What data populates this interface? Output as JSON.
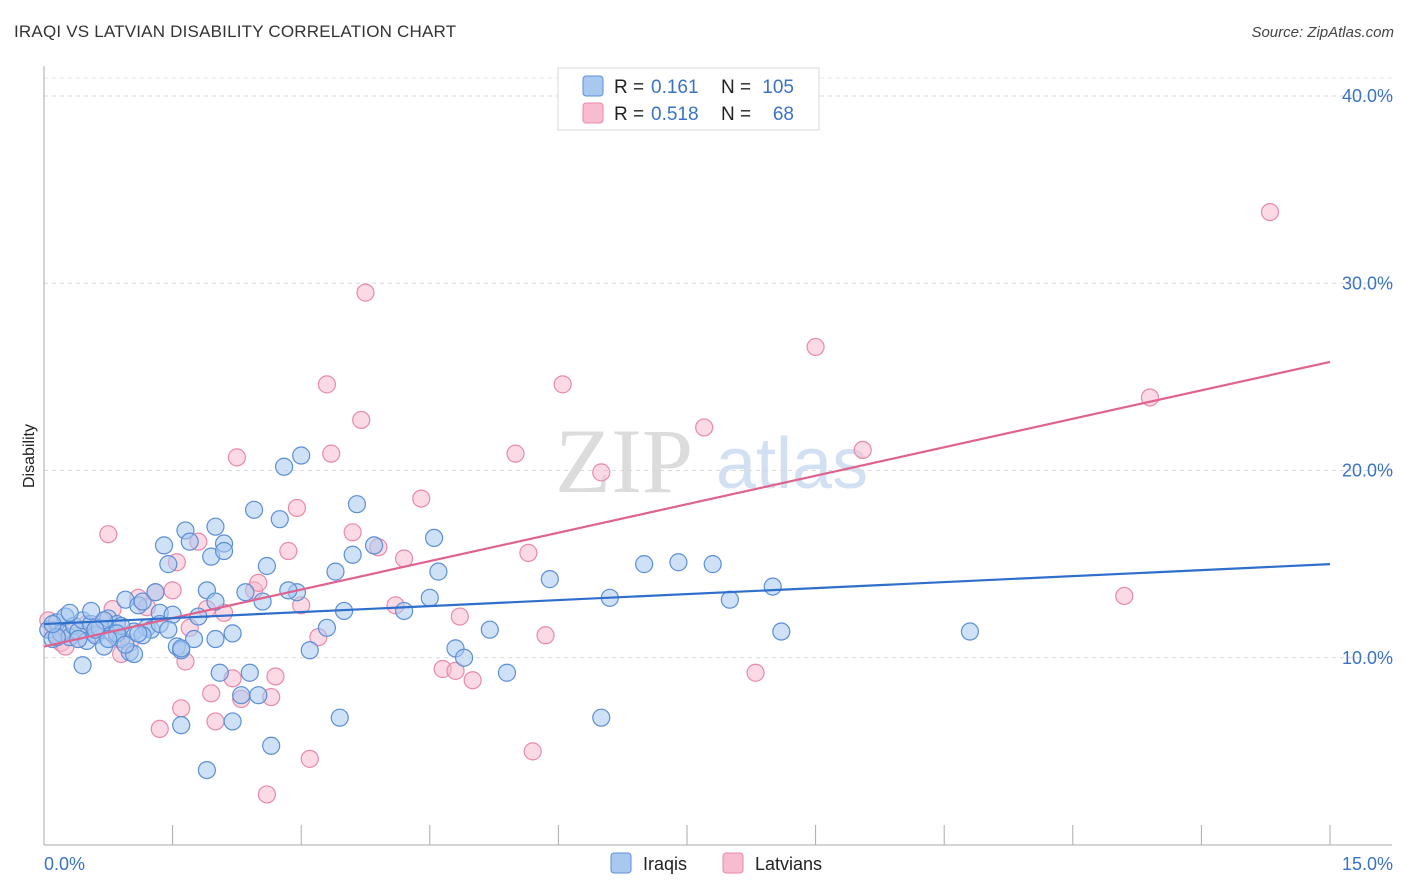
{
  "header": {
    "title": "IRAQI VS LATVIAN DISABILITY CORRELATION CHART",
    "source": "Source: ZipAtlas.com"
  },
  "watermark": {
    "zip": "ZIP",
    "atlas": "atlas"
  },
  "chart_data": {
    "type": "scatter",
    "title": "IRAQI VS LATVIAN DISABILITY CORRELATION CHART",
    "xlabel": "",
    "ylabel": "Disability",
    "xlim": [
      0,
      15
    ],
    "ylim": [
      0,
      40
    ],
    "x_ticks": [
      0,
      1.5,
      3,
      4.5,
      6,
      7.5,
      9,
      10.5,
      12,
      13.5,
      15
    ],
    "x_tick_labels": {
      "left": "0.0%",
      "right": "15.0%"
    },
    "y_ticks": [
      10,
      20,
      30,
      40
    ],
    "y_tick_labels": [
      "10.0%",
      "20.0%",
      "30.0%",
      "40.0%"
    ],
    "grid": "horizontal dashed",
    "legend_position": "top-center",
    "colors": {
      "iraqis_fill": "#a8c8f0",
      "iraqis_stroke": "#5b8fd6",
      "iraqis_line": "#2f6fcc",
      "latvians_fill": "#f8bcd0",
      "latvians_stroke": "#e88aa8",
      "latvians_line": "#e0628e",
      "tick_text": "#3a73c6"
    },
    "legend_stats": [
      {
        "r_label": "R =",
        "r_value": "0.161",
        "n_label": "N =",
        "n_value": "105"
      },
      {
        "r_label": "R =",
        "r_value": "0.518",
        "n_label": "N =",
        "n_value": "68"
      }
    ],
    "series": [
      {
        "name": "Iraqis",
        "trend": {
          "x": [
            0,
            15
          ],
          "y": [
            11.8,
            15.0
          ]
        },
        "points": [
          [
            0.05,
            11.5
          ],
          [
            0.1,
            11.0
          ],
          [
            0.15,
            11.9
          ],
          [
            0.2,
            11.3
          ],
          [
            0.25,
            12.2
          ],
          [
            0.3,
            11.1
          ],
          [
            0.35,
            11.7
          ],
          [
            0.4,
            11.4
          ],
          [
            0.45,
            12.0
          ],
          [
            0.5,
            10.9
          ],
          [
            0.55,
            11.8
          ],
          [
            0.6,
            11.2
          ],
          [
            0.65,
            11.6
          ],
          [
            0.7,
            10.6
          ],
          [
            0.75,
            12.1
          ],
          [
            0.8,
            11.3
          ],
          [
            0.85,
            11.8
          ],
          [
            0.9,
            11.0
          ],
          [
            0.95,
            13.1
          ],
          [
            1.0,
            10.3
          ],
          [
            1.05,
            11.4
          ],
          [
            1.1,
            12.8
          ],
          [
            1.15,
            13.0
          ],
          [
            1.2,
            11.6
          ],
          [
            1.3,
            13.5
          ],
          [
            1.35,
            12.4
          ],
          [
            1.4,
            16.0
          ],
          [
            1.45,
            15.0
          ],
          [
            1.5,
            12.3
          ],
          [
            1.55,
            10.6
          ],
          [
            1.6,
            10.4
          ],
          [
            1.65,
            16.8
          ],
          [
            1.7,
            16.2
          ],
          [
            1.75,
            11.0
          ],
          [
            1.8,
            12.2
          ],
          [
            1.9,
            13.6
          ],
          [
            1.95,
            15.4
          ],
          [
            2.0,
            17.0
          ],
          [
            2.05,
            9.2
          ],
          [
            2.1,
            16.1
          ],
          [
            2.2,
            11.3
          ],
          [
            2.3,
            8.0
          ],
          [
            2.35,
            13.5
          ],
          [
            2.4,
            9.2
          ],
          [
            2.45,
            17.9
          ],
          [
            2.5,
            8.0
          ],
          [
            2.55,
            13.0
          ],
          [
            2.6,
            14.9
          ],
          [
            2.65,
            5.3
          ],
          [
            2.75,
            17.4
          ],
          [
            2.8,
            20.2
          ],
          [
            2.95,
            13.5
          ],
          [
            3.0,
            20.8
          ],
          [
            3.1,
            10.4
          ],
          [
            3.3,
            11.6
          ],
          [
            3.4,
            14.6
          ],
          [
            3.45,
            6.8
          ],
          [
            3.5,
            12.5
          ],
          [
            3.6,
            15.5
          ],
          [
            3.65,
            18.2
          ],
          [
            3.85,
            16.0
          ],
          [
            4.2,
            12.5
          ],
          [
            4.5,
            13.2
          ],
          [
            4.55,
            16.4
          ],
          [
            4.6,
            14.6
          ],
          [
            4.8,
            10.5
          ],
          [
            4.9,
            10.0
          ],
          [
            5.2,
            11.5
          ],
          [
            5.4,
            9.2
          ],
          [
            5.9,
            14.2
          ],
          [
            6.5,
            6.8
          ],
          [
            6.6,
            13.2
          ],
          [
            7.0,
            15.0
          ],
          [
            7.4,
            15.1
          ],
          [
            7.8,
            15.0
          ],
          [
            8.0,
            13.1
          ],
          [
            8.5,
            13.8
          ],
          [
            8.6,
            11.4
          ],
          [
            10.8,
            11.4
          ],
          [
            1.9,
            4.0
          ],
          [
            1.6,
            6.4
          ],
          [
            2.2,
            6.6
          ],
          [
            0.45,
            9.6
          ],
          [
            1.05,
            10.2
          ],
          [
            1.25,
            11.5
          ],
          [
            0.7,
            12.0
          ],
          [
            0.9,
            11.7
          ],
          [
            1.15,
            11.2
          ],
          [
            0.3,
            12.4
          ],
          [
            0.6,
            11.5
          ],
          [
            0.85,
            11.3
          ],
          [
            0.15,
            11.1
          ],
          [
            0.1,
            11.8
          ],
          [
            0.4,
            11.0
          ],
          [
            1.6,
            10.5
          ],
          [
            1.35,
            11.8
          ],
          [
            2.0,
            11.0
          ],
          [
            2.1,
            15.7
          ],
          [
            2.85,
            13.6
          ],
          [
            1.45,
            11.5
          ],
          [
            2.0,
            13.0
          ],
          [
            0.55,
            12.5
          ],
          [
            1.1,
            11.3
          ],
          [
            0.75,
            11.0
          ],
          [
            0.95,
            10.7
          ]
        ]
      },
      {
        "name": "Latvians",
        "trend": {
          "x": [
            0,
            15
          ],
          "y": [
            10.6,
            25.8
          ]
        },
        "points": [
          [
            0.05,
            12.0
          ],
          [
            0.1,
            11.5
          ],
          [
            0.15,
            11.2
          ],
          [
            0.2,
            10.8
          ],
          [
            0.25,
            10.6
          ],
          [
            0.3,
            11.4
          ],
          [
            0.4,
            11.0
          ],
          [
            0.5,
            11.8
          ],
          [
            0.6,
            11.3
          ],
          [
            0.7,
            12.0
          ],
          [
            0.75,
            16.6
          ],
          [
            0.8,
            12.6
          ],
          [
            0.85,
            11.0
          ],
          [
            0.9,
            10.2
          ],
          [
            1.0,
            10.8
          ],
          [
            1.1,
            13.2
          ],
          [
            1.2,
            12.7
          ],
          [
            1.3,
            13.5
          ],
          [
            1.35,
            6.2
          ],
          [
            1.5,
            13.6
          ],
          [
            1.55,
            15.1
          ],
          [
            1.6,
            7.3
          ],
          [
            1.65,
            9.8
          ],
          [
            1.7,
            11.6
          ],
          [
            1.8,
            16.2
          ],
          [
            1.9,
            12.6
          ],
          [
            1.95,
            8.1
          ],
          [
            2.0,
            6.6
          ],
          [
            2.1,
            12.4
          ],
          [
            2.2,
            8.9
          ],
          [
            2.25,
            20.7
          ],
          [
            2.3,
            7.8
          ],
          [
            2.45,
            13.6
          ],
          [
            2.5,
            14.0
          ],
          [
            2.6,
            2.7
          ],
          [
            2.65,
            7.9
          ],
          [
            2.7,
            9.0
          ],
          [
            2.85,
            15.7
          ],
          [
            2.95,
            18.0
          ],
          [
            3.0,
            12.8
          ],
          [
            3.1,
            4.6
          ],
          [
            3.2,
            11.1
          ],
          [
            3.3,
            24.6
          ],
          [
            3.35,
            20.9
          ],
          [
            3.6,
            16.7
          ],
          [
            3.7,
            22.7
          ],
          [
            3.75,
            29.5
          ],
          [
            3.9,
            15.9
          ],
          [
            4.1,
            12.8
          ],
          [
            4.2,
            15.3
          ],
          [
            4.4,
            18.5
          ],
          [
            4.65,
            9.4
          ],
          [
            4.8,
            9.3
          ],
          [
            4.85,
            12.2
          ],
          [
            5.0,
            8.8
          ],
          [
            5.5,
            20.9
          ],
          [
            5.65,
            15.6
          ],
          [
            5.7,
            5.0
          ],
          [
            5.85,
            11.2
          ],
          [
            6.05,
            24.6
          ],
          [
            6.5,
            19.9
          ],
          [
            7.7,
            22.3
          ],
          [
            8.3,
            9.2
          ],
          [
            9.0,
            26.6
          ],
          [
            9.55,
            21.1
          ],
          [
            12.6,
            13.3
          ],
          [
            12.9,
            23.9
          ],
          [
            14.3,
            33.8
          ]
        ]
      }
    ]
  },
  "legend": {
    "items": [
      {
        "label": "Iraqis"
      },
      {
        "label": "Latvians"
      }
    ]
  }
}
